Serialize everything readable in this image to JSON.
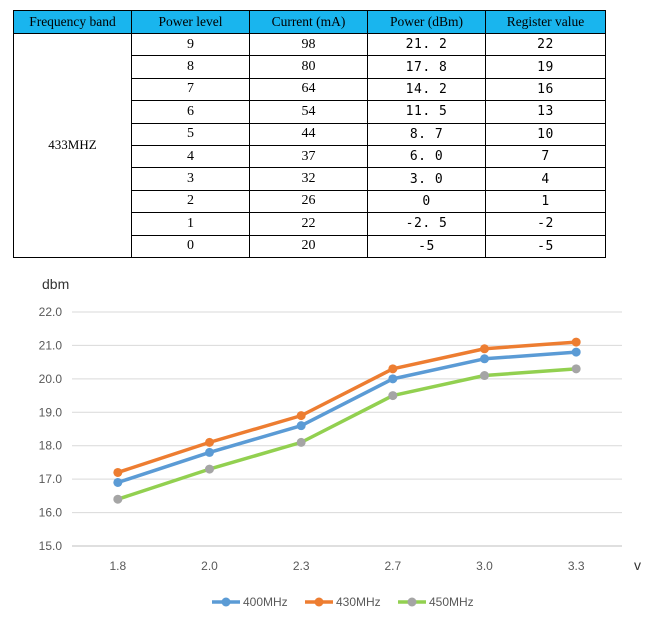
{
  "table": {
    "headers": [
      "Frequency band",
      "Power level",
      "Current (mA)",
      "Power (dBm)",
      "Register value"
    ],
    "band": "433MHZ",
    "rows": [
      [
        "9",
        "98",
        "21. 2",
        "22"
      ],
      [
        "8",
        "80",
        "17. 8",
        "19"
      ],
      [
        "7",
        "64",
        "14. 2",
        "16"
      ],
      [
        "6",
        "54",
        "11. 5",
        "13"
      ],
      [
        "5",
        "44",
        "8. 7",
        "10"
      ],
      [
        "4",
        "37",
        "6. 0",
        "7"
      ],
      [
        "3",
        "32",
        "3. 0",
        "4"
      ],
      [
        "2",
        "26",
        "0",
        "1"
      ],
      [
        "1",
        "22",
        "-2. 5",
        "-2"
      ],
      [
        "0",
        "20",
        "-5",
        "-5"
      ]
    ],
    "header_color": "#19b5ee"
  },
  "chart_data": {
    "type": "line",
    "ylabel": "dbm",
    "xlabel": "v",
    "categories": [
      "1.8",
      "2.0",
      "2.3",
      "2.7",
      "3.0",
      "3.3"
    ],
    "y_ticks": [
      "15.0",
      "16.0",
      "17.0",
      "18.0",
      "19.0",
      "20.0",
      "21.0",
      "22.0"
    ],
    "ylim": [
      15.0,
      22.0
    ],
    "grid": true,
    "legend_position": "bottom",
    "series": [
      {
        "name": "400MHz",
        "color": "#5b9bd5",
        "values": [
          16.9,
          17.8,
          18.6,
          20.0,
          20.6,
          20.8
        ]
      },
      {
        "name": "430MHz",
        "color": "#ed7d31",
        "values": [
          17.2,
          18.1,
          18.9,
          20.3,
          20.9,
          21.1
        ]
      },
      {
        "name": "450MHz",
        "color": "#a5a5a5",
        "line_color": "#92d050",
        "values": [
          16.4,
          17.3,
          18.1,
          19.5,
          20.1,
          20.3
        ]
      }
    ]
  }
}
